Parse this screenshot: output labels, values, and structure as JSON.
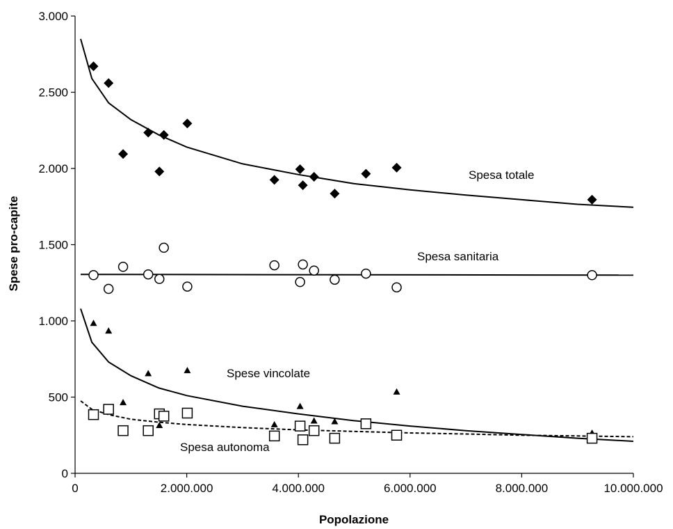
{
  "chart_data": {
    "type": "scatter",
    "xlabel": "Popolazione",
    "ylabel": "Spese pro-capite",
    "xlim": [
      0,
      10000000
    ],
    "ylim": [
      0,
      3000
    ],
    "x_ticks": [
      0,
      2000000,
      4000000,
      6000000,
      8000000,
      10000000
    ],
    "x_tick_labels": [
      "0",
      "2.000.000",
      "4.000.000",
      "6.000.000",
      "8.000.000",
      "10.000.000"
    ],
    "y_ticks": [
      0,
      500,
      1000,
      1500,
      2000,
      2500,
      3000
    ],
    "y_tick_labels": [
      "0",
      "500",
      "1.000",
      "1.500",
      "2.000",
      "2.500",
      "3.000"
    ],
    "grid": false,
    "legend": "none",
    "series": [
      {
        "name": "Spesa totale",
        "marker": "diamond-filled",
        "color": "#000000",
        "x": [
          330000,
          600000,
          860000,
          1310000,
          1510000,
          1590000,
          2010000,
          3570000,
          4030000,
          4080000,
          4280000,
          4650000,
          5210000,
          5760000,
          9260000
        ],
        "y": [
          2670,
          2560,
          2095,
          2235,
          1980,
          2220,
          2295,
          1925,
          1995,
          1890,
          1945,
          1835,
          1965,
          2005,
          1795
        ],
        "trend": {
          "style": "solid",
          "x": [
            100000,
            300000,
            600000,
            1000000,
            1500000,
            2000000,
            3000000,
            4000000,
            5000000,
            6000000,
            7000000,
            8000000,
            9000000,
            10000000
          ],
          "y": [
            2850,
            2590,
            2430,
            2320,
            2220,
            2140,
            2030,
            1960,
            1900,
            1860,
            1825,
            1795,
            1765,
            1745
          ]
        }
      },
      {
        "name": "Spesa sanitaria",
        "marker": "circle-open",
        "color": "#000000",
        "x": [
          330000,
          600000,
          860000,
          1310000,
          1510000,
          1590000,
          2010000,
          3570000,
          4030000,
          4080000,
          4280000,
          4650000,
          5210000,
          5760000,
          9260000
        ],
        "y": [
          1300,
          1210,
          1355,
          1305,
          1275,
          1480,
          1225,
          1365,
          1255,
          1370,
          1330,
          1270,
          1310,
          1220,
          1300
        ],
        "trend": {
          "style": "solid",
          "x": [
            100000,
            10000000
          ],
          "y": [
            1305,
            1300
          ]
        }
      },
      {
        "name": "Spese vincolate",
        "marker": "triangle-filled",
        "color": "#000000",
        "x": [
          330000,
          600000,
          860000,
          1310000,
          1510000,
          2010000,
          3570000,
          4030000,
          4280000,
          4650000,
          5760000,
          9260000
        ],
        "y": [
          985,
          935,
          465,
          655,
          315,
          675,
          320,
          440,
          345,
          340,
          535,
          265
        ],
        "trend": {
          "style": "solid",
          "x": [
            100000,
            300000,
            600000,
            1000000,
            1500000,
            2000000,
            3000000,
            4000000,
            5000000,
            6000000,
            7000000,
            8000000,
            9000000,
            10000000
          ],
          "y": [
            1080,
            860,
            730,
            640,
            560,
            510,
            440,
            390,
            345,
            310,
            280,
            255,
            230,
            210
          ]
        }
      },
      {
        "name": "Spesa autonoma",
        "marker": "square-open",
        "color": "#000000",
        "x": [
          330000,
          600000,
          860000,
          1310000,
          1510000,
          1590000,
          2010000,
          3570000,
          4030000,
          4080000,
          4280000,
          4650000,
          5210000,
          5760000,
          9260000
        ],
        "y": [
          385,
          420,
          280,
          280,
          390,
          375,
          395,
          245,
          310,
          220,
          280,
          230,
          325,
          250,
          230
        ],
        "trend": {
          "style": "dashed",
          "x": [
            100000,
            300000,
            600000,
            1000000,
            1500000,
            2000000,
            3000000,
            4000000,
            5000000,
            6000000,
            7000000,
            8000000,
            9000000,
            10000000
          ],
          "y": [
            475,
            420,
            385,
            355,
            335,
            320,
            300,
            285,
            275,
            265,
            258,
            250,
            245,
            240
          ]
        }
      }
    ]
  }
}
